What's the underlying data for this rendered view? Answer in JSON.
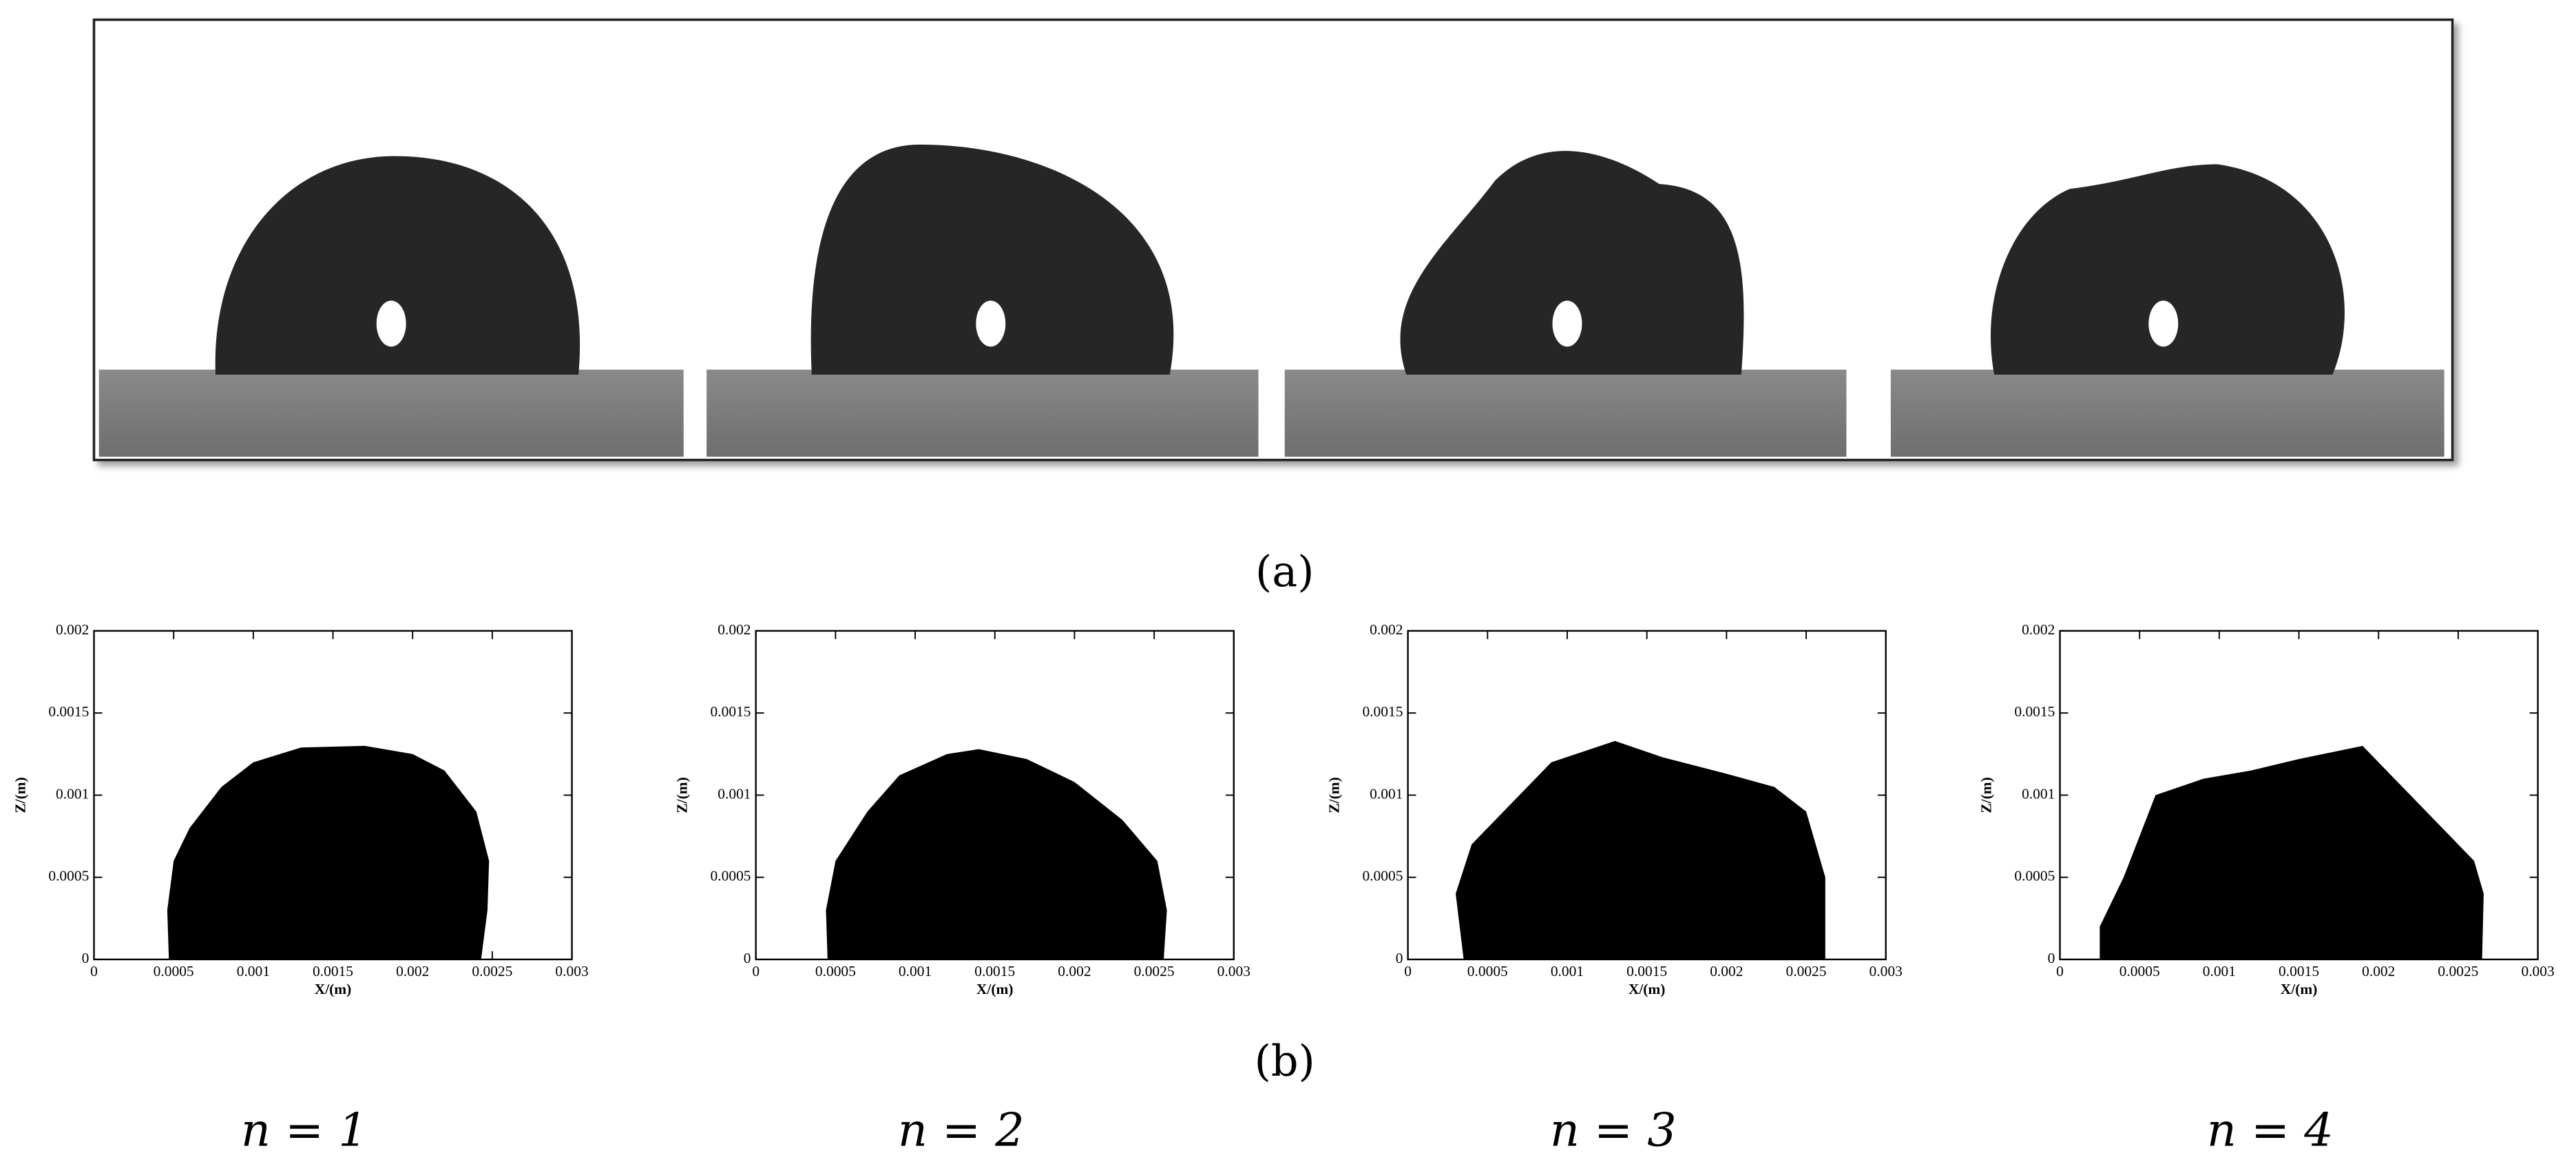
{
  "captions": [
    "(a)",
    "(b)"
  ],
  "panel_labels": [
    "n = 1",
    "n = 2",
    "n = 3",
    "n = 4"
  ],
  "chart_data": [
    {
      "type": "area",
      "xlabel": "X/(m)",
      "ylabel": "Z/(m)",
      "color": "#000000",
      "x": [
        0.00047,
        0.00046,
        0.0005,
        0.0006,
        0.0008,
        0.001,
        0.0013,
        0.0017,
        0.002,
        0.0022,
        0.0024,
        0.00248,
        0.00247,
        0.00243
      ],
      "values": [
        0,
        0.0003,
        0.0006,
        0.0008,
        0.00105,
        0.0012,
        0.00129,
        0.0013,
        0.00125,
        0.00115,
        0.0009,
        0.0006,
        0.0003,
        0
      ],
      "xlim": [
        0,
        0.003
      ],
      "ylim": [
        0,
        0.002
      ],
      "xticks": [
        0,
        0.0005,
        0.001,
        0.0015,
        0.002,
        0.0025,
        0.003
      ],
      "yticks": [
        0,
        0.0005,
        0.001,
        0.0015,
        0.002
      ]
    },
    {
      "type": "area",
      "xlabel": "X/(m)",
      "ylabel": "Z/(m)",
      "color": "#000000",
      "x": [
        0.00045,
        0.00044,
        0.0005,
        0.0007,
        0.0009,
        0.0012,
        0.0014,
        0.0017,
        0.002,
        0.0023,
        0.00252,
        0.00258,
        0.00256
      ],
      "values": [
        0,
        0.0003,
        0.0006,
        0.0009,
        0.00112,
        0.00125,
        0.00128,
        0.00122,
        0.00108,
        0.00085,
        0.0006,
        0.0003,
        0
      ],
      "xlim": [
        0,
        0.003
      ],
      "ylim": [
        0,
        0.002
      ],
      "xticks": [
        0,
        0.0005,
        0.001,
        0.0015,
        0.002,
        0.0025,
        0.003
      ],
      "yticks": [
        0,
        0.0005,
        0.001,
        0.0015,
        0.002
      ]
    },
    {
      "type": "area",
      "xlabel": "X/(m)",
      "ylabel": "Z/(m)",
      "color": "#000000",
      "x": [
        0.00035,
        0.0003,
        0.0004,
        0.0006,
        0.0009,
        0.0013,
        0.0016,
        0.002,
        0.0023,
        0.0025,
        0.00262,
        0.00262
      ],
      "values": [
        0,
        0.0004,
        0.0007,
        0.0009,
        0.0012,
        0.00133,
        0.00123,
        0.00113,
        0.00105,
        0.0009,
        0.0005,
        0
      ],
      "xlim": [
        0,
        0.003
      ],
      "ylim": [
        0,
        0.002
      ],
      "xticks": [
        0,
        0.0005,
        0.001,
        0.0015,
        0.002,
        0.0025,
        0.003
      ],
      "yticks": [
        0,
        0.0005,
        0.001,
        0.0015,
        0.002
      ]
    },
    {
      "type": "area",
      "xlabel": "X/(m)",
      "ylabel": "Z/(m)",
      "color": "#000000",
      "x": [
        0.00025,
        0.00025,
        0.0004,
        0.0006,
        0.0009,
        0.0012,
        0.0015,
        0.0019,
        0.0021,
        0.0024,
        0.0026,
        0.00266,
        0.00265
      ],
      "values": [
        0,
        0.0002,
        0.0005,
        0.001,
        0.0011,
        0.00115,
        0.00122,
        0.0013,
        0.0011,
        0.0008,
        0.0006,
        0.0004,
        0
      ],
      "xlim": [
        0,
        0.003
      ],
      "ylim": [
        0,
        0.002
      ],
      "xticks": [
        0,
        0.0005,
        0.001,
        0.0015,
        0.002,
        0.0025,
        0.003
      ],
      "yticks": [
        0,
        0.0005,
        0.001,
        0.0015,
        0.002
      ]
    }
  ]
}
